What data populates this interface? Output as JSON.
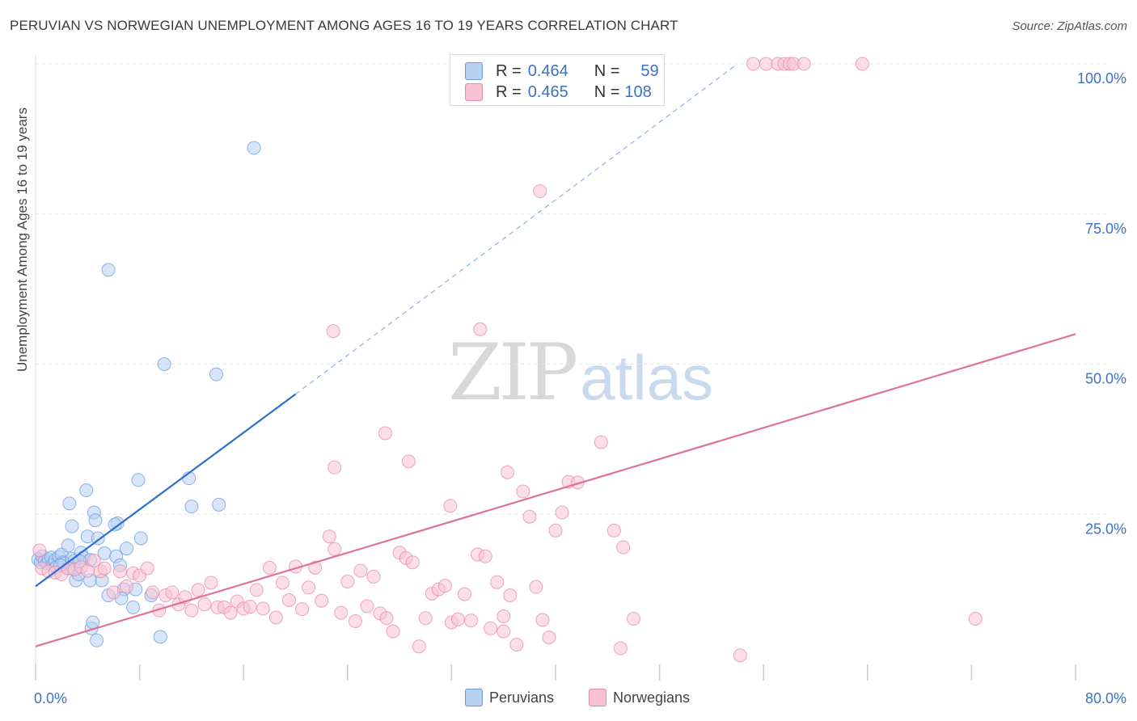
{
  "header": {
    "title": "PERUVIAN VS NORWEGIAN UNEMPLOYMENT AMONG AGES 16 TO 19 YEARS CORRELATION CHART",
    "source": "Source: ZipAtlas.com"
  },
  "watermark": {
    "zip": "ZIP",
    "atlas": "atlas"
  },
  "stats_legend": {
    "rows": [
      {
        "r_label": "R =",
        "r_value": "0.464",
        "n_label": "N =",
        "n_value": "59"
      },
      {
        "r_label": "R =",
        "r_value": "0.465",
        "n_label": "N =",
        "n_value": "108"
      }
    ]
  },
  "chart_data": {
    "type": "scatter",
    "title": "PERUVIAN VS NORWEGIAN UNEMPLOYMENT AMONG AGES 16 TO 19 YEARS CORRELATION CHART",
    "xlabel": "",
    "ylabel": "Unemployment Among Ages 16 to 19 years",
    "xlim": [
      0,
      80
    ],
    "ylim": [
      0,
      100
    ],
    "x_tick_labels": [
      "0.0%",
      "80.0%"
    ],
    "y_tick_labels": [
      "25.0%",
      "50.0%",
      "75.0%",
      "100.0%"
    ],
    "y_ticks": [
      25,
      50,
      75,
      100
    ],
    "grid": true,
    "legend_position": "bottom",
    "colors": {
      "peruvians": "#6a9be0",
      "peruvians_fill": "#b8d0f2",
      "norwegians": "#e68aa8",
      "norwegians_fill": "#f7c3d4",
      "peruvians_line": "#2c6fd1",
      "norwegians_line": "#e0709a",
      "axis_text": "#3b72c6"
    },
    "series": [
      {
        "name": "Peruvians",
        "R": 0.464,
        "N": 59,
        "trend": {
          "x": [
            0,
            20
          ],
          "y": [
            13,
            45
          ],
          "dashed_extension_to": [
            54,
            100
          ]
        },
        "points": [
          [
            0.2,
            17.5
          ],
          [
            0.4,
            17
          ],
          [
            0.5,
            18
          ],
          [
            0.7,
            17.2
          ],
          [
            0.9,
            16.8
          ],
          [
            1.0,
            17.5
          ],
          [
            1.2,
            17.8
          ],
          [
            1.3,
            16.5
          ],
          [
            1.5,
            17.3
          ],
          [
            1.6,
            16.2
          ],
          [
            1.8,
            17.9
          ],
          [
            2.0,
            18.3
          ],
          [
            2.1,
            17
          ],
          [
            2.2,
            16.8
          ],
          [
            2.5,
            19.8
          ],
          [
            2.7,
            16
          ],
          [
            2.8,
            17.6
          ],
          [
            3.0,
            17.3
          ],
          [
            3.1,
            14
          ],
          [
            3.3,
            15
          ],
          [
            3.5,
            18.6
          ],
          [
            3.7,
            17.8
          ],
          [
            4.0,
            21.3
          ],
          [
            4.2,
            14
          ],
          [
            4.5,
            25.3
          ],
          [
            4.6,
            24
          ],
          [
            4.8,
            21
          ],
          [
            5.1,
            14
          ],
          [
            5.3,
            18.5
          ],
          [
            5.6,
            11.5
          ],
          [
            6.2,
            18
          ],
          [
            6.5,
            16.5
          ],
          [
            6.8,
            12.5
          ],
          [
            7.0,
            19.3
          ],
          [
            7.5,
            9.5
          ],
          [
            8.1,
            21
          ],
          [
            8.9,
            11.5
          ],
          [
            2.8,
            23
          ],
          [
            3.9,
            29
          ],
          [
            2.6,
            26.8
          ],
          [
            6.3,
            23.5
          ],
          [
            6.1,
            23.3
          ],
          [
            7.9,
            30.7
          ],
          [
            11.8,
            31
          ],
          [
            12.0,
            26.3
          ],
          [
            14.1,
            26.6
          ],
          [
            9.9,
            50
          ],
          [
            13.9,
            48.3
          ],
          [
            5.6,
            65.7
          ],
          [
            16.8,
            86
          ],
          [
            4.3,
            6
          ],
          [
            4.4,
            7
          ],
          [
            4.7,
            4
          ],
          [
            9.6,
            4.6
          ],
          [
            6.6,
            11
          ],
          [
            7.7,
            12.5
          ],
          [
            4.2,
            17.4
          ],
          [
            3.4,
            17.2
          ],
          [
            1.9,
            16.5
          ]
        ]
      },
      {
        "name": "Norwegians",
        "R": 0.465,
        "N": 108,
        "trend": {
          "x": [
            0,
            80
          ],
          "y": [
            3,
            55
          ]
        },
        "points": [
          [
            0.3,
            19
          ],
          [
            0.5,
            16
          ],
          [
            1.0,
            15.5
          ],
          [
            1.5,
            15.3
          ],
          [
            2.0,
            15
          ],
          [
            2.5,
            16
          ],
          [
            3.0,
            15.8
          ],
          [
            3.5,
            16.2
          ],
          [
            4.0,
            15.6
          ],
          [
            4.5,
            17.3
          ],
          [
            5.0,
            15.5
          ],
          [
            5.3,
            16
          ],
          [
            6.0,
            12
          ],
          [
            6.5,
            15.5
          ],
          [
            7.0,
            13
          ],
          [
            7.5,
            15.2
          ],
          [
            8.0,
            14.8
          ],
          [
            8.6,
            16
          ],
          [
            9.0,
            12
          ],
          [
            9.5,
            9
          ],
          [
            10.0,
            11.5
          ],
          [
            10.5,
            12
          ],
          [
            11.0,
            10
          ],
          [
            11.5,
            11.2
          ],
          [
            12.0,
            9
          ],
          [
            12.5,
            12.4
          ],
          [
            13.0,
            10
          ],
          [
            13.5,
            13.6
          ],
          [
            14.0,
            9.5
          ],
          [
            14.5,
            9.5
          ],
          [
            15.0,
            8.6
          ],
          [
            15.5,
            10.5
          ],
          [
            16.0,
            9.3
          ],
          [
            16.5,
            9.6
          ],
          [
            17.0,
            12.4
          ],
          [
            17.5,
            9.3
          ],
          [
            18.0,
            16.1
          ],
          [
            18.5,
            7.8
          ],
          [
            19.0,
            13.6
          ],
          [
            19.5,
            10.7
          ],
          [
            20.0,
            16.3
          ],
          [
            20.5,
            9.2
          ],
          [
            21.0,
            12.8
          ],
          [
            21.5,
            16.1
          ],
          [
            22.0,
            10.6
          ],
          [
            22.6,
            21.3
          ],
          [
            23.0,
            19.2
          ],
          [
            23.5,
            8.6
          ],
          [
            24.0,
            13.8
          ],
          [
            24.6,
            7.2
          ],
          [
            25.0,
            15.6
          ],
          [
            25.5,
            9.7
          ],
          [
            26.0,
            14.6
          ],
          [
            26.5,
            8.5
          ],
          [
            27.0,
            7.7
          ],
          [
            27.5,
            5.5
          ],
          [
            28.0,
            18.6
          ],
          [
            28.5,
            17.7
          ],
          [
            29.0,
            17.0
          ],
          [
            29.5,
            3
          ],
          [
            30.0,
            7.7
          ],
          [
            30.5,
            11.8
          ],
          [
            31.0,
            12.5
          ],
          [
            31.5,
            13.1
          ],
          [
            32.0,
            7
          ],
          [
            32.5,
            7.5
          ],
          [
            33.0,
            11.7
          ],
          [
            33.5,
            7.3
          ],
          [
            34.0,
            18.3
          ],
          [
            34.6,
            18
          ],
          [
            35.0,
            6
          ],
          [
            35.5,
            13.7
          ],
          [
            36.0,
            5.5
          ],
          [
            36.5,
            11.5
          ],
          [
            37.0,
            3.3
          ],
          [
            38.0,
            24.6
          ],
          [
            38.5,
            12.9
          ],
          [
            39.0,
            7.4
          ],
          [
            39.5,
            4.5
          ],
          [
            40.0,
            22.3
          ],
          [
            40.5,
            25.3
          ],
          [
            41.0,
            30.4
          ],
          [
            41.7,
            30.3
          ],
          [
            43.5,
            37
          ],
          [
            44.5,
            22.3
          ],
          [
            45.2,
            19.5
          ],
          [
            45.0,
            2.7
          ],
          [
            46.0,
            7.6
          ],
          [
            36.0,
            8
          ],
          [
            37.5,
            28.8
          ],
          [
            36.3,
            32
          ],
          [
            31.9,
            26.4
          ],
          [
            28.7,
            33.8
          ],
          [
            26.9,
            38.5
          ],
          [
            22.9,
            55.5
          ],
          [
            34.2,
            55.8
          ],
          [
            38.8,
            78.8
          ],
          [
            23.0,
            32.8
          ],
          [
            55.2,
            100
          ],
          [
            56.2,
            100
          ],
          [
            57.1,
            100
          ],
          [
            57.6,
            100
          ],
          [
            58.0,
            100
          ],
          [
            58.3,
            100
          ],
          [
            59.1,
            100
          ],
          [
            63.6,
            100
          ],
          [
            72.3,
            7.6
          ],
          [
            54.2,
            1.5
          ]
        ]
      }
    ]
  },
  "legend_bottom": {
    "items": [
      {
        "label": "Peruvians"
      },
      {
        "label": "Norwegians"
      }
    ]
  }
}
